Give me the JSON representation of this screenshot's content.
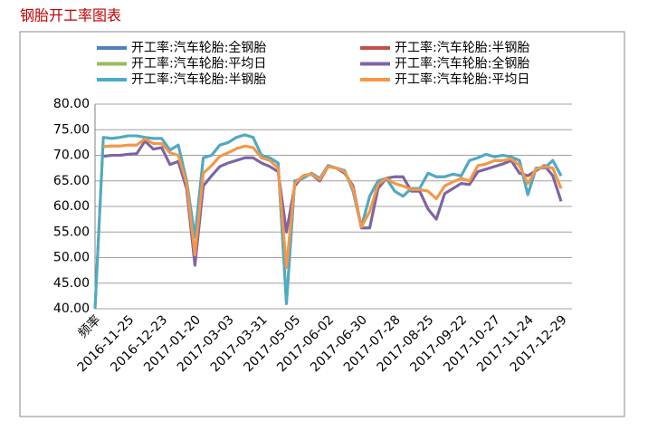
{
  "chart_data": {
    "type": "line",
    "title": "钢胎开工率图表",
    "categories": [
      "频率",
      null,
      null,
      null,
      "2016-11-25",
      null,
      null,
      null,
      "2016-12-23",
      null,
      null,
      null,
      "2017-01-20",
      null,
      null,
      null,
      "2017-03-03",
      null,
      null,
      null,
      "2017-03-31",
      null,
      null,
      null,
      "2017-05-05",
      null,
      null,
      null,
      "2017-06-02",
      null,
      null,
      null,
      "2017-06-30",
      null,
      null,
      null,
      "2017-07-28",
      null,
      null,
      null,
      "2017-08-25",
      null,
      null,
      null,
      "2017-09-22",
      null,
      null,
      null,
      "2017-10-27",
      null,
      null,
      null,
      "2017-11-24",
      null,
      null,
      null,
      "2017-12-29"
    ],
    "ylim": [
      40,
      80
    ],
    "yticks": [
      {
        "value": 40,
        "label": "40.00"
      },
      {
        "value": 45,
        "label": "45.00"
      },
      {
        "value": 50,
        "label": "50.00"
      },
      {
        "value": 55,
        "label": "55.00"
      },
      {
        "value": 60,
        "label": "60.00"
      },
      {
        "value": 65,
        "label": "65.00"
      },
      {
        "value": 70,
        "label": "70.00"
      },
      {
        "value": 75,
        "label": "75.00"
      },
      {
        "value": 80,
        "label": "80.00"
      }
    ],
    "grid": true,
    "series": [
      {
        "name": "开工率:汽车轮胎:全钢胎",
        "color": "#4f81bd",
        "values": [
          null,
          69.8,
          70,
          70,
          70.2,
          70.3,
          72.8,
          71.2,
          71.5,
          68.2,
          68.8,
          63.5,
          48.5,
          64,
          66,
          67.8,
          68.5,
          69,
          69.5,
          69.5,
          68.5,
          67.8,
          66.8,
          55,
          64,
          66,
          66.3,
          65,
          67.8,
          67.5,
          66.5,
          64,
          55.8,
          55.8,
          63.5,
          65.5,
          65.8,
          65.8,
          63,
          63,
          59.5,
          57.5,
          62.5,
          63.5,
          64.5,
          64.3,
          66.8,
          67.3,
          67.8,
          68.3,
          69,
          66.5,
          66,
          67,
          68,
          66,
          61
        ]
      },
      {
        "name": "开工率:汽车轮胎:半钢胎",
        "color": "#c0504d",
        "values": [
          40,
          73.5,
          73.3,
          73.5,
          73.8,
          73.8,
          73.5,
          73.3,
          73.3,
          71,
          72,
          65,
          54,
          69.5,
          70,
          72,
          72.5,
          73.5,
          74,
          73.5,
          70,
          69.5,
          68.5,
          41,
          65,
          65.5,
          66.5,
          65.5,
          68,
          67.5,
          67,
          63,
          56,
          62,
          65,
          65.5,
          63,
          62,
          63.5,
          63.5,
          66.5,
          65.8,
          65.8,
          66.3,
          66,
          69,
          69.5,
          70.2,
          69.7,
          70,
          69.7,
          69,
          62.3,
          67.5,
          67.5,
          69,
          66
        ]
      },
      {
        "name": "开工率:汽车轮胎:平均日",
        "color": "#9bbb59",
        "values": [
          null,
          71.7,
          71.8,
          71.8,
          72,
          72,
          73.2,
          72.3,
          72.3,
          70.5,
          70,
          64.5,
          50.5,
          66.5,
          68,
          69.8,
          70.5,
          71.3,
          71.8,
          71.5,
          69.5,
          69,
          67.5,
          48,
          64.5,
          66,
          66.3,
          65.3,
          67.8,
          67.5,
          66.8,
          63.5,
          56,
          59,
          64.3,
          65.5,
          64.5,
          64,
          63.3,
          63.3,
          63,
          61.5,
          64,
          64.8,
          65.5,
          65,
          68,
          68.3,
          69,
          69,
          69.3,
          68,
          64.5,
          67.3,
          67.8,
          67.5,
          63.5
        ]
      },
      {
        "name": "开工率:汽车轮胎:全钢胎",
        "color": "#8064a2",
        "values": [
          null,
          69.8,
          70,
          70,
          70.2,
          70.3,
          72.8,
          71.2,
          71.5,
          68.2,
          68.8,
          63.5,
          48.5,
          64,
          66,
          67.8,
          68.5,
          69,
          69.5,
          69.5,
          68.5,
          67.8,
          66.8,
          55,
          64,
          66,
          66.3,
          65,
          67.8,
          67.5,
          66.5,
          64,
          55.8,
          55.8,
          63.5,
          65.5,
          65.8,
          65.8,
          63,
          63,
          59.5,
          57.5,
          62.5,
          63.5,
          64.5,
          64.3,
          66.8,
          67.3,
          67.8,
          68.3,
          69,
          66.5,
          66,
          67,
          68,
          66,
          61
        ]
      },
      {
        "name": "开工率:汽车轮胎:半钢胎",
        "color": "#4bacc6",
        "values": [
          40,
          73.5,
          73.3,
          73.5,
          73.8,
          73.8,
          73.5,
          73.3,
          73.3,
          71,
          72,
          65,
          54,
          69.5,
          70,
          72,
          72.5,
          73.5,
          74,
          73.5,
          70,
          69.5,
          68.5,
          41,
          65,
          65.5,
          66.5,
          65.5,
          68,
          67.5,
          67,
          63,
          56,
          62,
          65,
          65.5,
          63,
          62,
          63.5,
          63.5,
          66.5,
          65.8,
          65.8,
          66.3,
          66,
          69,
          69.5,
          70.2,
          69.7,
          70,
          69.7,
          69,
          62.3,
          67.5,
          67.5,
          69,
          66
        ]
      },
      {
        "name": "开工率:汽车轮胎:平均日",
        "color": "#f79646",
        "values": [
          null,
          71.7,
          71.8,
          71.8,
          72,
          72,
          73.2,
          72.3,
          72.3,
          70.5,
          70,
          64.5,
          50.5,
          66.5,
          68,
          69.8,
          70.5,
          71.3,
          71.8,
          71.5,
          69.5,
          69,
          67.5,
          48,
          64.5,
          66,
          66.3,
          65.3,
          67.8,
          67.5,
          66.8,
          63.5,
          56,
          59,
          64.3,
          65.5,
          64.5,
          64,
          63.3,
          63.3,
          63,
          61.5,
          64,
          64.8,
          65.5,
          65,
          68,
          68.3,
          69,
          69,
          69.3,
          68,
          64.5,
          67.3,
          67.8,
          67.5,
          63.5
        ]
      }
    ]
  }
}
